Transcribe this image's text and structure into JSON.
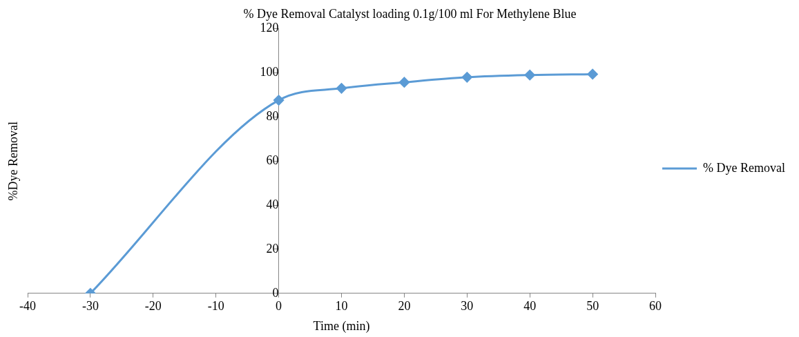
{
  "chart_data": {
    "type": "line",
    "title": "% Dye Removal Catalyst loading 0.1g/100 ml For Methylene Blue",
    "xlabel": "Time (min)",
    "ylabel": "%Dye Removal",
    "x": [
      -30,
      0,
      10,
      20,
      30,
      40,
      50
    ],
    "series": [
      {
        "name": "% Dye Removal",
        "color": "#5b9bd5",
        "values": [
          0,
          87.6,
          93,
          95.7,
          98,
          99,
          99.4
        ]
      }
    ],
    "xlim": [
      -40,
      60
    ],
    "xticks": [
      -40,
      -30,
      -20,
      -10,
      0,
      10,
      20,
      30,
      40,
      50,
      60
    ],
    "ylim": [
      0,
      120
    ],
    "yticks": [
      0,
      20,
      40,
      60,
      80,
      100,
      120
    ],
    "grid": false,
    "legend": "right",
    "marker": "diamond",
    "line_style": "solid"
  }
}
